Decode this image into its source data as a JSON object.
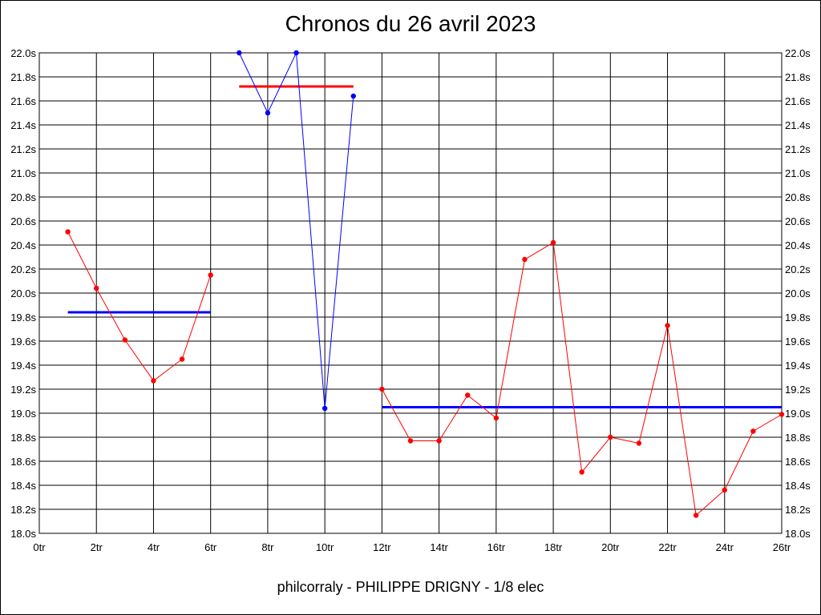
{
  "chart_data": {
    "type": "line",
    "title": "Chronos du 26 avril 2023",
    "subtitle": "philcorraly - PHILIPPE DRIGNY - 1/8 elec",
    "xlim": [
      0,
      26
    ],
    "ylim": [
      18.0,
      22.0
    ],
    "x_ticks": [
      {
        "value": 0,
        "label": "0tr"
      },
      {
        "value": 2,
        "label": "2tr"
      },
      {
        "value": 4,
        "label": "4tr"
      },
      {
        "value": 6,
        "label": "6tr"
      },
      {
        "value": 8,
        "label": "8tr"
      },
      {
        "value": 10,
        "label": "10tr"
      },
      {
        "value": 12,
        "label": "12tr"
      },
      {
        "value": 14,
        "label": "14tr"
      },
      {
        "value": 16,
        "label": "16tr"
      },
      {
        "value": 18,
        "label": "18tr"
      },
      {
        "value": 20,
        "label": "20tr"
      },
      {
        "value": 22,
        "label": "22tr"
      },
      {
        "value": 24,
        "label": "24tr"
      },
      {
        "value": 26,
        "label": "26tr"
      }
    ],
    "y_ticks": [
      {
        "value": 18.0,
        "label": "18.0s"
      },
      {
        "value": 18.2,
        "label": "18.2s"
      },
      {
        "value": 18.4,
        "label": "18.4s"
      },
      {
        "value": 18.6,
        "label": "18.6s"
      },
      {
        "value": 18.8,
        "label": "18.8s"
      },
      {
        "value": 19.0,
        "label": "19.0s"
      },
      {
        "value": 19.2,
        "label": "19.2s"
      },
      {
        "value": 19.4,
        "label": "19.4s"
      },
      {
        "value": 19.6,
        "label": "19.6s"
      },
      {
        "value": 19.8,
        "label": "19.8s"
      },
      {
        "value": 20.0,
        "label": "20.0s"
      },
      {
        "value": 20.2,
        "label": "20.2s"
      },
      {
        "value": 20.4,
        "label": "20.4s"
      },
      {
        "value": 20.6,
        "label": "20.6s"
      },
      {
        "value": 20.8,
        "label": "20.8s"
      },
      {
        "value": 21.0,
        "label": "21.0s"
      },
      {
        "value": 21.2,
        "label": "21.2s"
      },
      {
        "value": 21.4,
        "label": "21.4s"
      },
      {
        "value": 21.6,
        "label": "21.6s"
      },
      {
        "value": 21.8,
        "label": "21.8s"
      },
      {
        "value": 22.0,
        "label": "22.0s"
      }
    ],
    "grid": true,
    "series": [
      {
        "color": "#ff0000",
        "points": [
          [
            1,
            20.51
          ],
          [
            2,
            20.04
          ],
          [
            3,
            19.61
          ],
          [
            4,
            19.27
          ],
          [
            5,
            19.45
          ],
          [
            6,
            20.15
          ]
        ]
      },
      {
        "color": "#0000ff",
        "points": [
          [
            7,
            22.0
          ],
          [
            8,
            21.5
          ],
          [
            9,
            22.0
          ],
          [
            10,
            19.04
          ],
          [
            11,
            21.64
          ]
        ]
      },
      {
        "color": "#ff0000",
        "points": [
          [
            12,
            19.2
          ],
          [
            13,
            18.77
          ],
          [
            14,
            18.77
          ],
          [
            15,
            19.15
          ],
          [
            16,
            18.96
          ],
          [
            17,
            20.28
          ],
          [
            18,
            20.42
          ],
          [
            19,
            18.51
          ],
          [
            20,
            18.8
          ],
          [
            21,
            18.75
          ],
          [
            22,
            19.73
          ],
          [
            23,
            18.15
          ],
          [
            24,
            18.36
          ],
          [
            25,
            18.85
          ],
          [
            26,
            18.99
          ]
        ]
      }
    ],
    "averages": [
      {
        "color": "#0000ff",
        "x_start": 1,
        "x_end": 6,
        "value": 19.84
      },
      {
        "color": "#ff0000",
        "x_start": 7,
        "x_end": 11,
        "value": 21.72
      },
      {
        "color": "#0000ff",
        "x_start": 12,
        "x_end": 26,
        "value": 19.05
      }
    ]
  }
}
